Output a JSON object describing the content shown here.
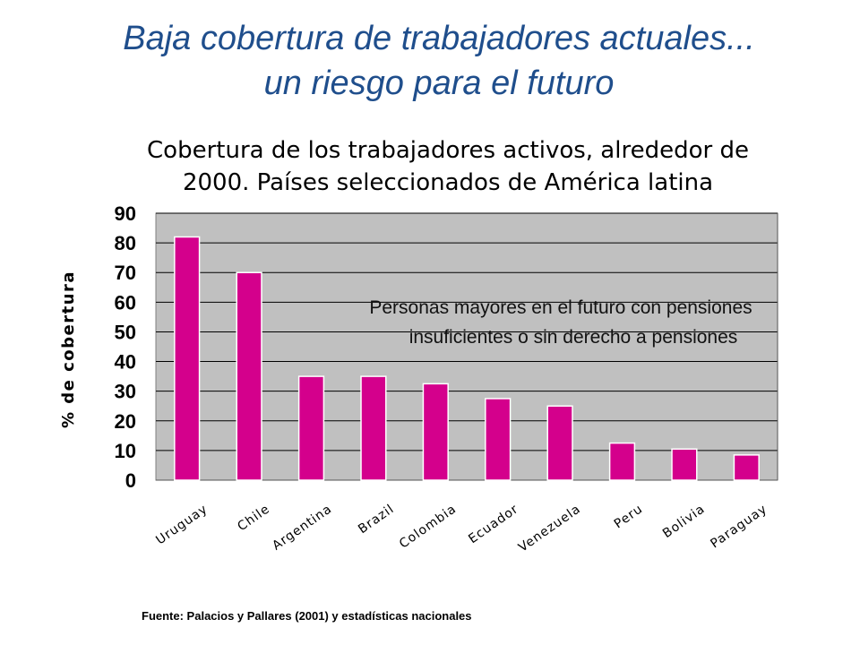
{
  "slide": {
    "title_line1": "Baja cobertura de trabajadores actuales...",
    "title_line2": "un riesgo para el futuro",
    "source": "Fuente: Palacios y Pallares (2001) y estadísticas nacionales"
  },
  "chart_data": {
    "type": "bar",
    "title_line1": "Cobertura de los trabajadores activos, alrededor de",
    "title_line2": "2000. Países seleccionados de América latina",
    "ylabel": "% de cobertura",
    "xlabel": "",
    "categories": [
      "Uruguay",
      "Chile",
      "Argentina",
      "Brazil",
      "Colombia",
      "Ecuador",
      "Venezuela",
      "Peru",
      "Bolivia",
      "Paraguay"
    ],
    "values": [
      82,
      70,
      35,
      35,
      32.5,
      27.5,
      25,
      12.5,
      10.5,
      8.5
    ],
    "ylim": [
      0,
      90
    ],
    "yticks": [
      0,
      10,
      20,
      30,
      40,
      50,
      60,
      70,
      80,
      90
    ],
    "grid": true,
    "colors": {
      "bar": "#d4008c",
      "plot_bg": "#c0c0c0",
      "grid": "#000000",
      "title": "#1f4e8c"
    },
    "annotation": {
      "line1": "Personas mayores en el futuro con pensiones",
      "line2": "insuficientes o sin derecho a pensiones"
    }
  }
}
